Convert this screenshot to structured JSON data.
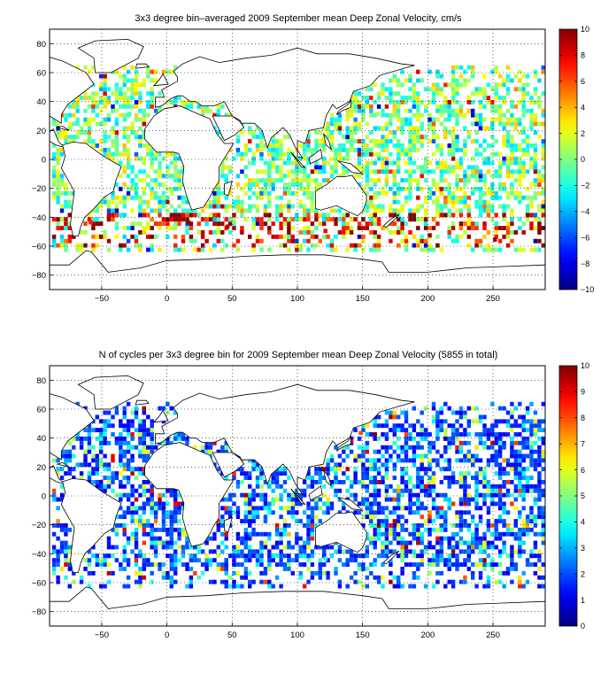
{
  "chart_data": [
    {
      "type": "heatmap",
      "title": "3x3 degree bin–averaged 2009 September mean Deep Zonal Velocity, cm/s",
      "xlim": [
        -90,
        290
      ],
      "ylim": [
        -90,
        90
      ],
      "x_ticks": [
        -50,
        0,
        50,
        100,
        150,
        200,
        250
      ],
      "y_ticks": [
        -80,
        -60,
        -40,
        -20,
        0,
        20,
        40,
        60,
        80
      ],
      "bin_size_deg": 3,
      "colorbar": {
        "min": -10,
        "max": 10,
        "ticks": [
          10,
          8,
          6,
          4,
          2,
          0,
          -2,
          -4,
          -6,
          -8,
          -10
        ],
        "colormap": "jet"
      },
      "grid": true,
      "value_note": "dense scatter of colored bins over the oceans between about 62S and 62N; strong positive (red) values concentrated along 40S-60S (Antarctic Circumpolar Current)",
      "sample_bins": [
        {
          "lon": 15,
          "lat": -45,
          "value": 10
        },
        {
          "lon": 45,
          "lat": -48,
          "value": 9
        },
        {
          "lon": 120,
          "lat": -51,
          "value": 8
        },
        {
          "lon": 200,
          "lat": -54,
          "value": 10
        },
        {
          "lon": -60,
          "lat": -45,
          "value": 7
        },
        {
          "lon": 250,
          "lat": -57,
          "value": 9
        },
        {
          "lon": 160,
          "lat": 30,
          "value": 1
        },
        {
          "lon": -30,
          "lat": 30,
          "value": -1
        }
      ]
    },
    {
      "type": "heatmap",
      "title": "N of cycles per 3x3 degree bin for 2009 September mean Deep Zonal Velocity (5855 in total)",
      "xlim": [
        -90,
        290
      ],
      "ylim": [
        -90,
        90
      ],
      "x_ticks": [
        -50,
        0,
        50,
        100,
        150,
        200,
        250
      ],
      "y_ticks": [
        -80,
        -60,
        -40,
        -20,
        0,
        20,
        40,
        60,
        80
      ],
      "bin_size_deg": 3,
      "colorbar": {
        "min": 0,
        "max": 10,
        "ticks": [
          10,
          9,
          8,
          7,
          6,
          5,
          4,
          3,
          2,
          1,
          0
        ],
        "colormap": "jet"
      },
      "grid": true,
      "total_cycles": 5855,
      "value_note": "mostly 1-3 cycles per bin (blue/cyan), with scattered higher counts (yellow/red) in the western Pacific and North Atlantic",
      "sample_bins": [
        {
          "lon": 140,
          "lat": 36,
          "value": 9
        },
        {
          "lon": 147,
          "lat": 42,
          "value": 8
        },
        {
          "lon": -40,
          "lat": 35,
          "value": 2
        },
        {
          "lon": 200,
          "lat": 20,
          "value": 3
        },
        {
          "lon": 60,
          "lat": -30,
          "value": 1
        },
        {
          "lon": 120,
          "lat": -45,
          "value": 4
        }
      ]
    }
  ]
}
